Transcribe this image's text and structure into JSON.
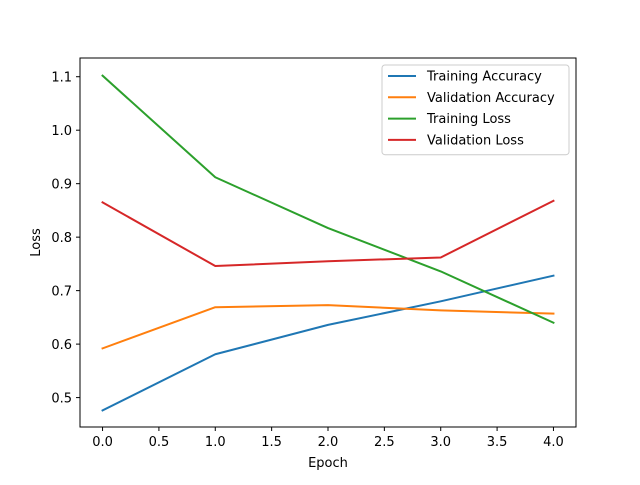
{
  "chart_data": {
    "type": "line",
    "xlabel": "Epoch",
    "ylabel": "Loss",
    "x": [
      0,
      1,
      2,
      3,
      4
    ],
    "xlim": [
      -0.2,
      4.2
    ],
    "ylim": [
      0.445,
      1.135
    ],
    "xticks": [
      0.0,
      0.5,
      1.0,
      1.5,
      2.0,
      2.5,
      3.0,
      3.5,
      4.0
    ],
    "xtick_labels": [
      "0.0",
      "0.5",
      "1.0",
      "1.5",
      "2.0",
      "2.5",
      "3.0",
      "3.5",
      "4.0"
    ],
    "yticks": [
      0.5,
      0.6,
      0.7,
      0.8,
      0.9,
      1.0,
      1.1
    ],
    "ytick_labels": [
      "0.5",
      "0.6",
      "0.7",
      "0.8",
      "0.9",
      "1.0",
      "1.1"
    ],
    "grid": false,
    "legend_position": "top-right",
    "series": [
      {
        "name": "Training Accuracy",
        "color": "#1f77b4",
        "values": [
          0.476,
          0.581,
          0.636,
          0.68,
          0.728
        ]
      },
      {
        "name": "Validation Accuracy",
        "color": "#ff7f0e",
        "values": [
          0.592,
          0.669,
          0.673,
          0.663,
          0.657
        ]
      },
      {
        "name": "Training Loss",
        "color": "#2ca02c",
        "values": [
          1.102,
          0.912,
          0.817,
          0.736,
          0.64
        ]
      },
      {
        "name": "Validation Loss",
        "color": "#d62728",
        "values": [
          0.865,
          0.746,
          0.755,
          0.762,
          0.868
        ]
      }
    ]
  }
}
